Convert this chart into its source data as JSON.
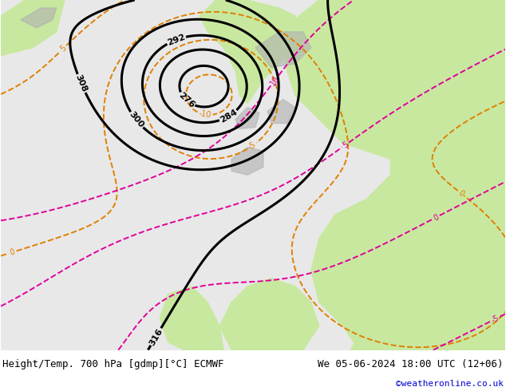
{
  "title_left": "Height/Temp. 700 hPa [gdmp][°C] ECMWF",
  "title_right": "We 05-06-2024 18:00 UTC (12+06)",
  "credit": "©weatheronline.co.uk",
  "fig_width": 6.34,
  "fig_height": 4.9,
  "dpi": 100,
  "bg_ocean": "#e8e8e8",
  "bg_land": "#c8e8a0",
  "bg_gray_land": "#c0c0c0",
  "bottom_bar_color": "#ffffff",
  "title_color": "#000000",
  "credit_color": "#0000cc",
  "font_size_title": 9,
  "font_size_credit": 8,
  "geo_color": "#000000",
  "geo_linewidth": 2.2,
  "geo_levels": [
    276,
    284,
    292,
    300,
    308,
    316
  ],
  "temp_orange_color": "#e08000",
  "temp_pink_color": "#e0009a",
  "temp_red_color": "#cc1100",
  "temp_linewidth": 1.4
}
